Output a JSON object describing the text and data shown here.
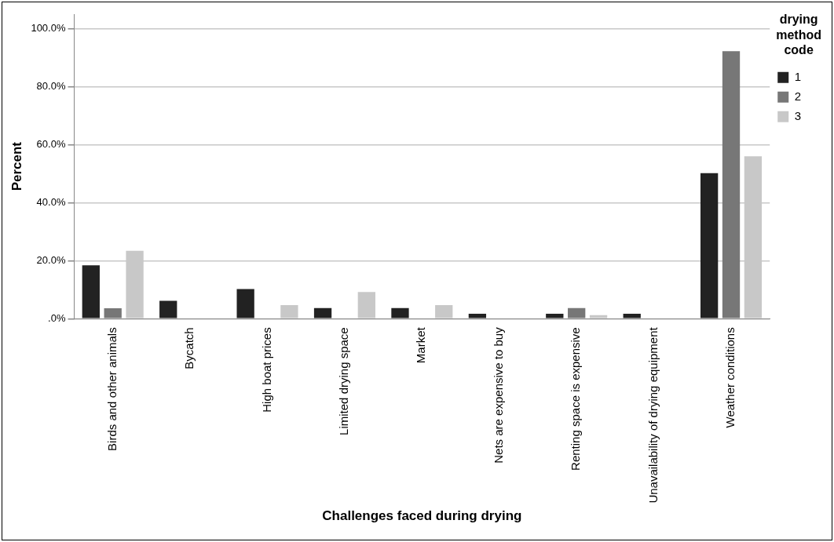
{
  "chart_data": {
    "type": "bar",
    "xlabel": "Challenges faced during drying",
    "ylabel": "Percent",
    "legend_title": "drying method code",
    "categories": [
      "Birds and other animals",
      "Bycatch",
      "High boat prices",
      "Limited drying space",
      "Market",
      "Nets are expensive to buy",
      "Renting space is expensive",
      "Unavailability of drying equipment",
      "Weather conditions"
    ],
    "series": [
      {
        "name": "1",
        "color": "#222222",
        "values": [
          18.4,
          6.2,
          10.2,
          3.7,
          3.7,
          1.7,
          1.7,
          1.7,
          50.2
        ]
      },
      {
        "name": "2",
        "color": "#777777",
        "values": [
          3.6,
          0,
          0,
          0,
          0,
          0,
          3.7,
          0,
          92.2
        ]
      },
      {
        "name": "3",
        "color": "#c8c8c8",
        "values": [
          23.4,
          0,
          4.7,
          9.2,
          4.7,
          0,
          1.2,
          0,
          56.0
        ]
      }
    ],
    "ylim": [
      0,
      105
    ],
    "yticks": [
      {
        "value": 0,
        "label": ".0%"
      },
      {
        "value": 20,
        "label": "20.0%"
      },
      {
        "value": 40,
        "label": "40.0%"
      },
      {
        "value": 60,
        "label": "60.0%"
      },
      {
        "value": 80,
        "label": "80.0%"
      },
      {
        "value": 100,
        "label": "100.0%"
      }
    ],
    "grid": "y",
    "legend": "top right"
  }
}
